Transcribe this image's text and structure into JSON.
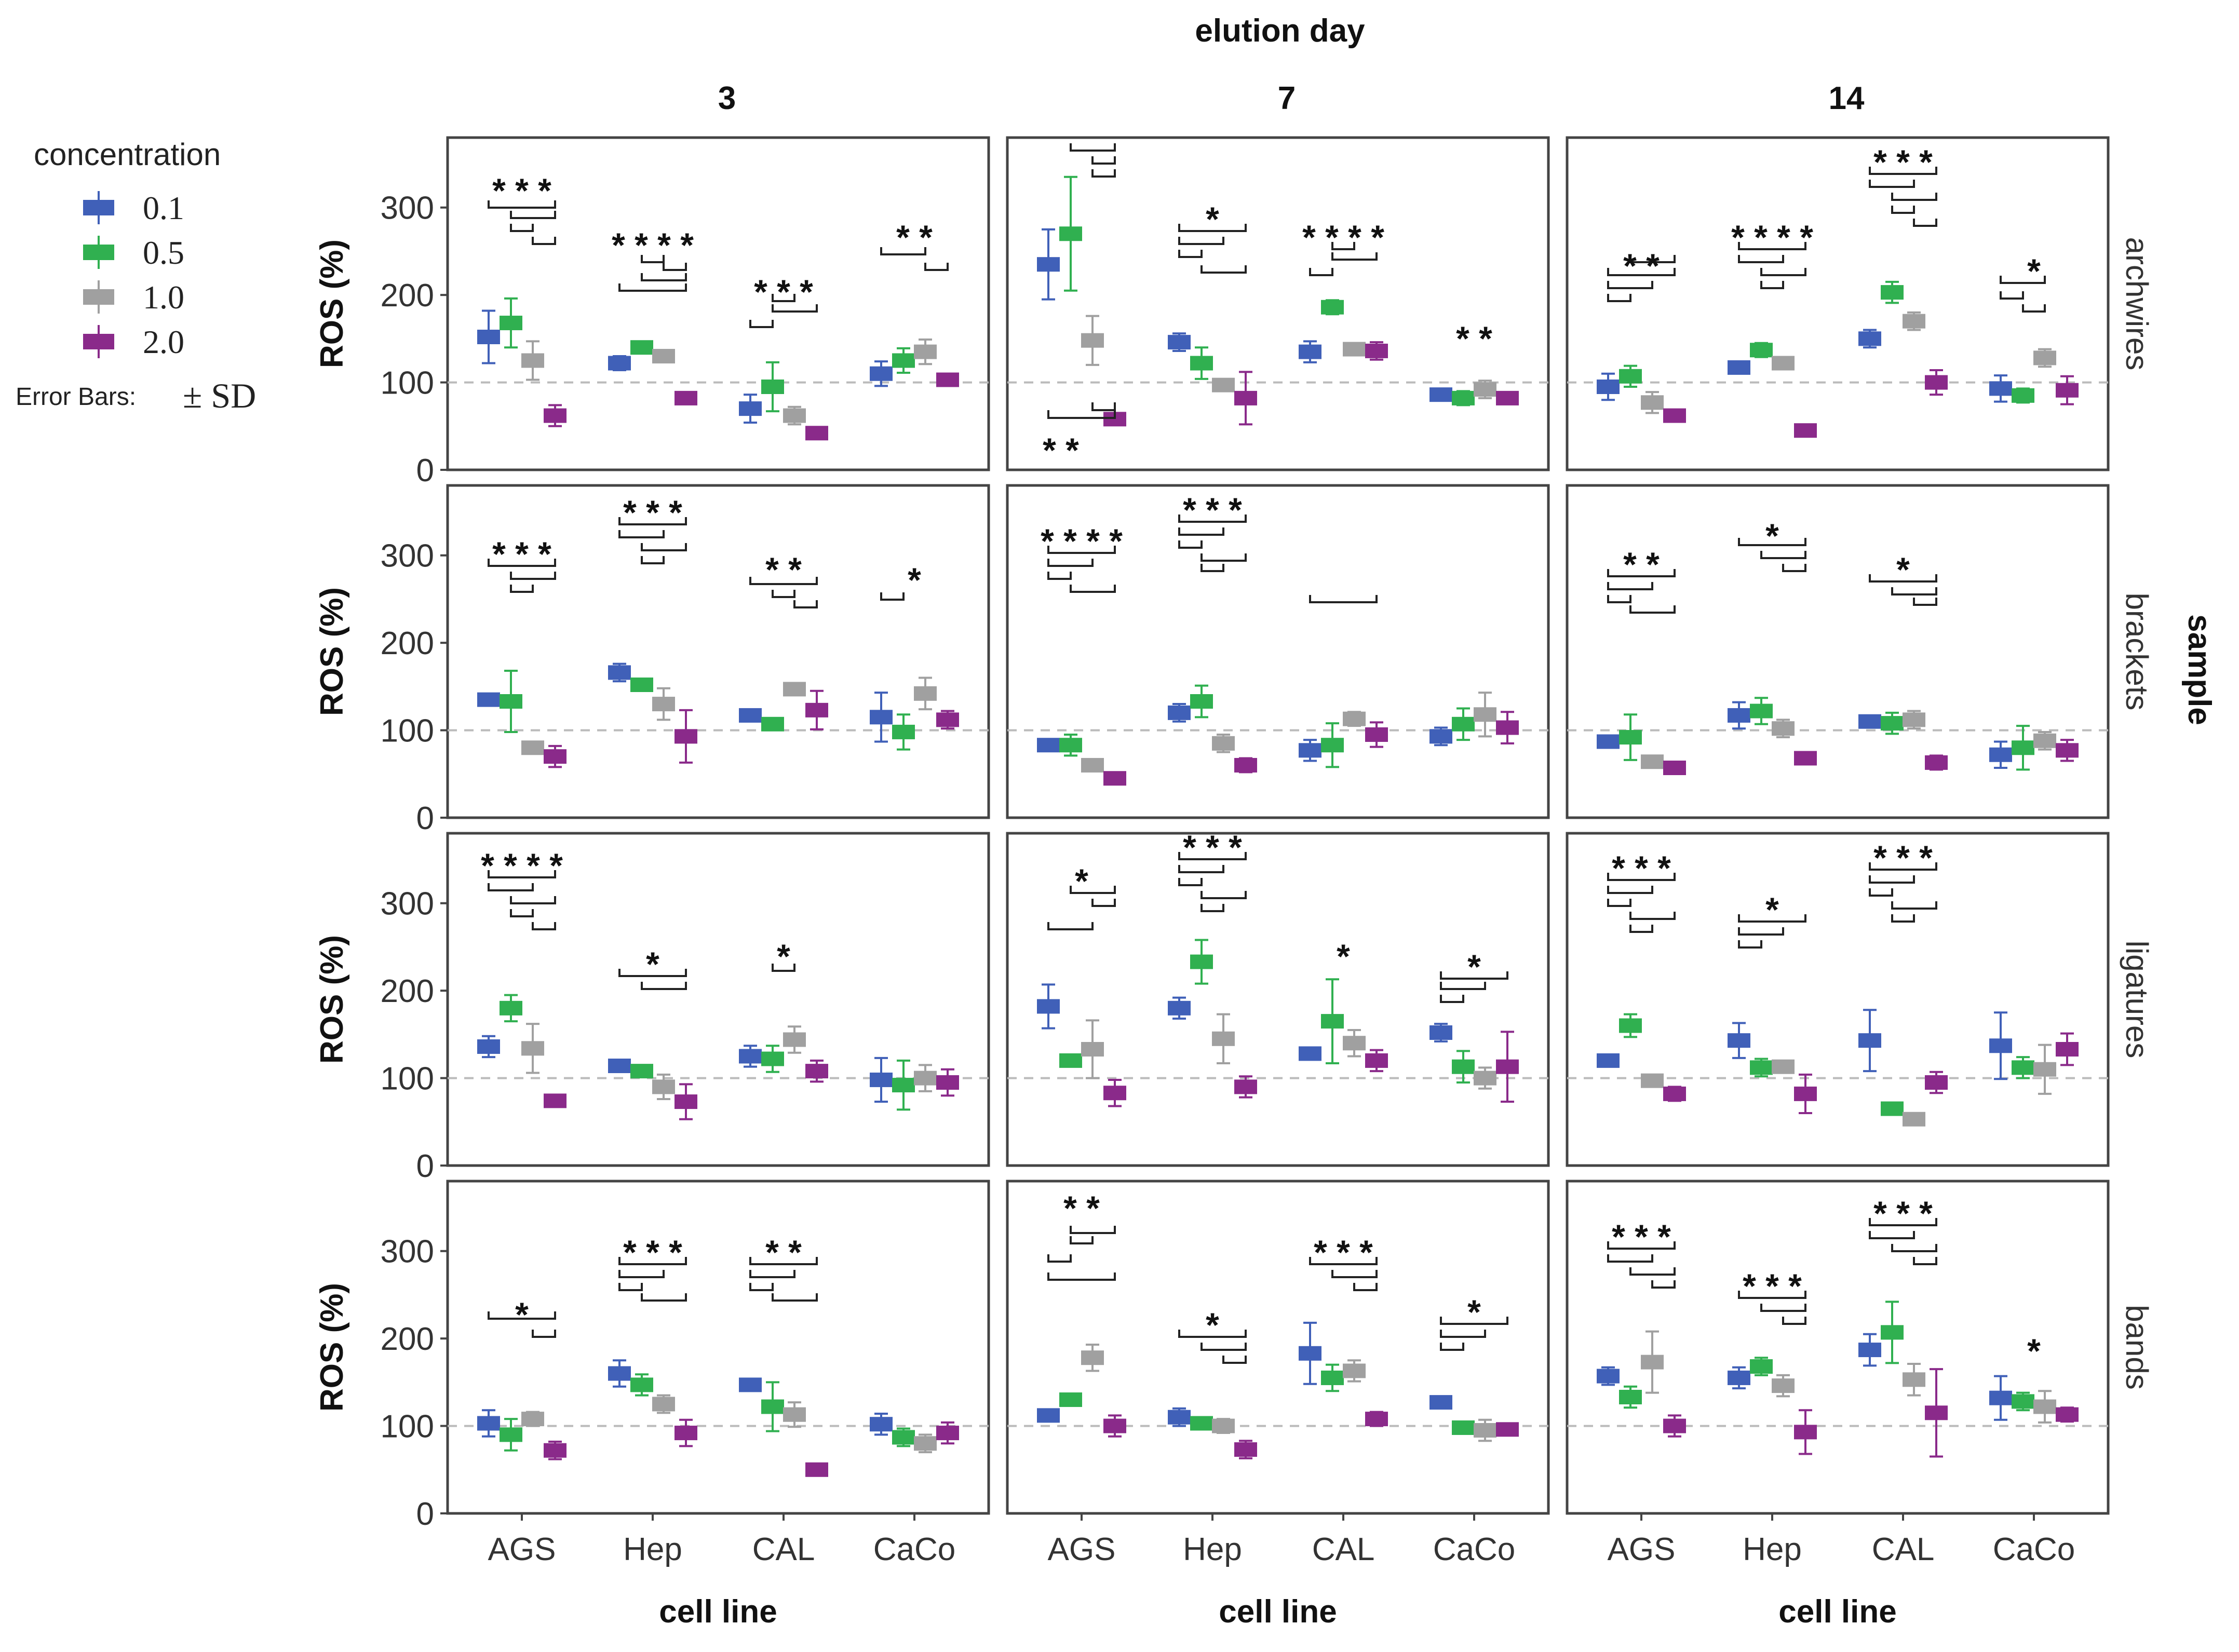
{
  "chart_data": {
    "type": "box",
    "title": "elution day",
    "xlabel": "cell line",
    "ylabel": "ROS (%)",
    "row_facet_title": "sample",
    "columns": [
      "3",
      "7",
      "14"
    ],
    "rows": [
      "archwires",
      "brackets",
      "ligatures",
      "bands"
    ],
    "categories": [
      "AGS",
      "Hep",
      "CAL",
      "CaCo"
    ],
    "ylim": [
      0,
      380
    ],
    "yticks": [
      0,
      100,
      200,
      300
    ],
    "reference_line": 100,
    "legend": {
      "title": "concentration",
      "placement": "top-left",
      "items": [
        {
          "label": "0.1",
          "color": "#4060b8"
        },
        {
          "label": "0.5",
          "color": "#30b050"
        },
        {
          "label": "1.0",
          "color": "#a0a0a0"
        },
        {
          "label": "2.0",
          "color": "#8a2a8a"
        }
      ],
      "error_bars_label": "Error Bars:",
      "error_bars_value": "± SD"
    },
    "panels": [
      {
        "row": "archwires",
        "column": "3",
        "values": {
          "AGS": [
            [
              152,
              30
            ],
            [
              168,
              28
            ],
            [
              125,
              22
            ],
            [
              62,
              12
            ]
          ],
          "Hep": [
            [
              122,
              8
            ],
            [
              140,
              6
            ],
            [
              130,
              6
            ],
            [
              82,
              5
            ]
          ],
          "CAL": [
            [
              70,
              16
            ],
            [
              95,
              28
            ],
            [
              62,
              10
            ],
            [
              42,
              4
            ]
          ],
          "CaCo": [
            [
              110,
              14
            ],
            [
              125,
              14
            ],
            [
              135,
              14
            ],
            [
              103,
              6
            ]
          ]
        }
      },
      {
        "row": "archwires",
        "column": "7",
        "values": {
          "AGS": [
            [
              235,
              40
            ],
            [
              270,
              65
            ],
            [
              148,
              28
            ],
            [
              58,
              5
            ]
          ],
          "Hep": [
            [
              146,
              10
            ],
            [
              122,
              18
            ],
            [
              97,
              6
            ],
            [
              82,
              30
            ]
          ],
          "CAL": [
            [
              135,
              12
            ],
            [
              186,
              8
            ],
            [
              138,
              4
            ],
            [
              136,
              10
            ]
          ],
          "CaCo": [
            [
              86,
              5
            ],
            [
              82,
              8
            ],
            [
              92,
              10
            ],
            [
              82,
              6
            ]
          ]
        }
      },
      {
        "row": "archwires",
        "column": "14",
        "values": {
          "AGS": [
            [
              95,
              15
            ],
            [
              107,
              12
            ],
            [
              77,
              12
            ],
            [
              62,
              5
            ]
          ],
          "Hep": [
            [
              117,
              5
            ],
            [
              137,
              8
            ],
            [
              122,
              5
            ],
            [
              45,
              4
            ]
          ],
          "CAL": [
            [
              150,
              10
            ],
            [
              203,
              12
            ],
            [
              170,
              10
            ],
            [
              100,
              14
            ]
          ],
          "CaCo": [
            [
              93,
              15
            ],
            [
              85,
              8
            ],
            [
              128,
              10
            ],
            [
              91,
              16
            ]
          ]
        }
      },
      {
        "row": "brackets",
        "column": "3",
        "values": {
          "AGS": [
            [
              135,
              5
            ],
            [
              133,
              35
            ],
            [
              80,
              5
            ],
            [
              70,
              12
            ]
          ],
          "Hep": [
            [
              166,
              10
            ],
            [
              152,
              6
            ],
            [
              130,
              18
            ],
            [
              93,
              30
            ]
          ],
          "CAL": [
            [
              117,
              5
            ],
            [
              107,
              5
            ],
            [
              147,
              5
            ],
            [
              123,
              22
            ]
          ],
          "CaCo": [
            [
              115,
              28
            ],
            [
              98,
              20
            ],
            [
              142,
              18
            ],
            [
              112,
              10
            ]
          ]
        }
      },
      {
        "row": "brackets",
        "column": "7",
        "values": {
          "AGS": [
            [
              83,
              5
            ],
            [
              83,
              12
            ],
            [
              60,
              5
            ],
            [
              45,
              5
            ]
          ],
          "Hep": [
            [
              120,
              10
            ],
            [
              133,
              18
            ],
            [
              85,
              10
            ],
            [
              60,
              8
            ]
          ],
          "CAL": [
            [
              77,
              12
            ],
            [
              83,
              25
            ],
            [
              113,
              8
            ],
            [
              95,
              14
            ]
          ],
          "CaCo": [
            [
              93,
              10
            ],
            [
              107,
              18
            ],
            [
              118,
              25
            ],
            [
              103,
              18
            ]
          ]
        }
      },
      {
        "row": "brackets",
        "column": "14",
        "values": {
          "AGS": [
            [
              87,
              5
            ],
            [
              92,
              26
            ],
            [
              64,
              5
            ],
            [
              57,
              5
            ]
          ],
          "Hep": [
            [
              117,
              15
            ],
            [
              122,
              15
            ],
            [
              102,
              10
            ],
            [
              68,
              5
            ]
          ],
          "CAL": [
            [
              110,
              6
            ],
            [
              108,
              12
            ],
            [
              112,
              10
            ],
            [
              63,
              8
            ]
          ],
          "CaCo": [
            [
              72,
              15
            ],
            [
              80,
              25
            ],
            [
              88,
              10
            ],
            [
              77,
              12
            ]
          ]
        }
      },
      {
        "row": "ligatures",
        "column": "3",
        "values": {
          "AGS": [
            [
              136,
              12
            ],
            [
              180,
              15
            ],
            [
              134,
              28
            ],
            [
              74,
              5
            ]
          ],
          "Hep": [
            [
              114,
              5
            ],
            [
              108,
              5
            ],
            [
              90,
              14
            ],
            [
              73,
              20
            ]
          ],
          "CAL": [
            [
              125,
              12
            ],
            [
              122,
              15
            ],
            [
              144,
              15
            ],
            [
              108,
              12
            ]
          ],
          "CaCo": [
            [
              98,
              25
            ],
            [
              92,
              28
            ],
            [
              100,
              15
            ],
            [
              95,
              15
            ]
          ]
        }
      },
      {
        "row": "ligatures",
        "column": "7",
        "values": {
          "AGS": [
            [
              182,
              25
            ],
            [
              120,
              6
            ],
            [
              133,
              33
            ],
            [
              83,
              15
            ]
          ],
          "Hep": [
            [
              180,
              12
            ],
            [
              233,
              25
            ],
            [
              145,
              28
            ],
            [
              90,
              12
            ]
          ],
          "CAL": [
            [
              128,
              5
            ],
            [
              165,
              48
            ],
            [
              140,
              15
            ],
            [
              120,
              12
            ]
          ],
          "CaCo": [
            [
              152,
              10
            ],
            [
              113,
              18
            ],
            [
              100,
              12
            ],
            [
              113,
              40
            ]
          ]
        }
      },
      {
        "row": "ligatures",
        "column": "14",
        "values": {
          "AGS": [
            [
              120,
              5
            ],
            [
              160,
              13
            ],
            [
              97,
              5
            ],
            [
              82,
              8
            ]
          ],
          "Hep": [
            [
              143,
              20
            ],
            [
              112,
              10
            ],
            [
              113,
              6
            ],
            [
              82,
              22
            ]
          ],
          "CAL": [
            [
              143,
              35
            ],
            [
              65,
              5
            ],
            [
              53,
              5
            ],
            [
              95,
              12
            ]
          ],
          "CaCo": [
            [
              137,
              38
            ],
            [
              112,
              12
            ],
            [
              110,
              28
            ],
            [
              133,
              18
            ]
          ]
        }
      },
      {
        "row": "bands",
        "column": "3",
        "values": {
          "AGS": [
            [
              103,
              15
            ],
            [
              90,
              18
            ],
            [
              108,
              8
            ],
            [
              72,
              10
            ]
          ],
          "Hep": [
            [
              160,
              15
            ],
            [
              147,
              12
            ],
            [
              125,
              10
            ],
            [
              92,
              15
            ]
          ],
          "CAL": [
            [
              147,
              5
            ],
            [
              122,
              28
            ],
            [
              113,
              14
            ],
            [
              50,
              4
            ]
          ],
          "CaCo": [
            [
              102,
              12
            ],
            [
              87,
              10
            ],
            [
              80,
              10
            ],
            [
              92,
              12
            ]
          ]
        }
      },
      {
        "row": "bands",
        "column": "7",
        "values": {
          "AGS": [
            [
              112,
              5
            ],
            [
              130,
              5
            ],
            [
              178,
              15
            ],
            [
              100,
              12
            ]
          ],
          "Hep": [
            [
              110,
              10
            ],
            [
              103,
              6
            ],
            [
              100,
              8
            ],
            [
              73,
              10
            ]
          ],
          "CAL": [
            [
              183,
              35
            ],
            [
              155,
              15
            ],
            [
              163,
              12
            ],
            [
              108,
              8
            ]
          ],
          "CaCo": [
            [
              127,
              6
            ],
            [
              98,
              5
            ],
            [
              95,
              12
            ],
            [
              96,
              5
            ]
          ]
        }
      },
      {
        "row": "bands",
        "column": "14",
        "values": {
          "AGS": [
            [
              157,
              10
            ],
            [
              133,
              12
            ],
            [
              173,
              35
            ],
            [
              100,
              12
            ]
          ],
          "Hep": [
            [
              155,
              12
            ],
            [
              168,
              10
            ],
            [
              146,
              12
            ],
            [
              93,
              25
            ]
          ],
          "CAL": [
            [
              187,
              18
            ],
            [
              207,
              35
            ],
            [
              153,
              18
            ],
            [
              115,
              50
            ]
          ],
          "CaCo": [
            [
              132,
              25
            ],
            [
              128,
              10
            ],
            [
              122,
              18
            ],
            [
              113,
              8
            ]
          ]
        }
      }
    ]
  }
}
